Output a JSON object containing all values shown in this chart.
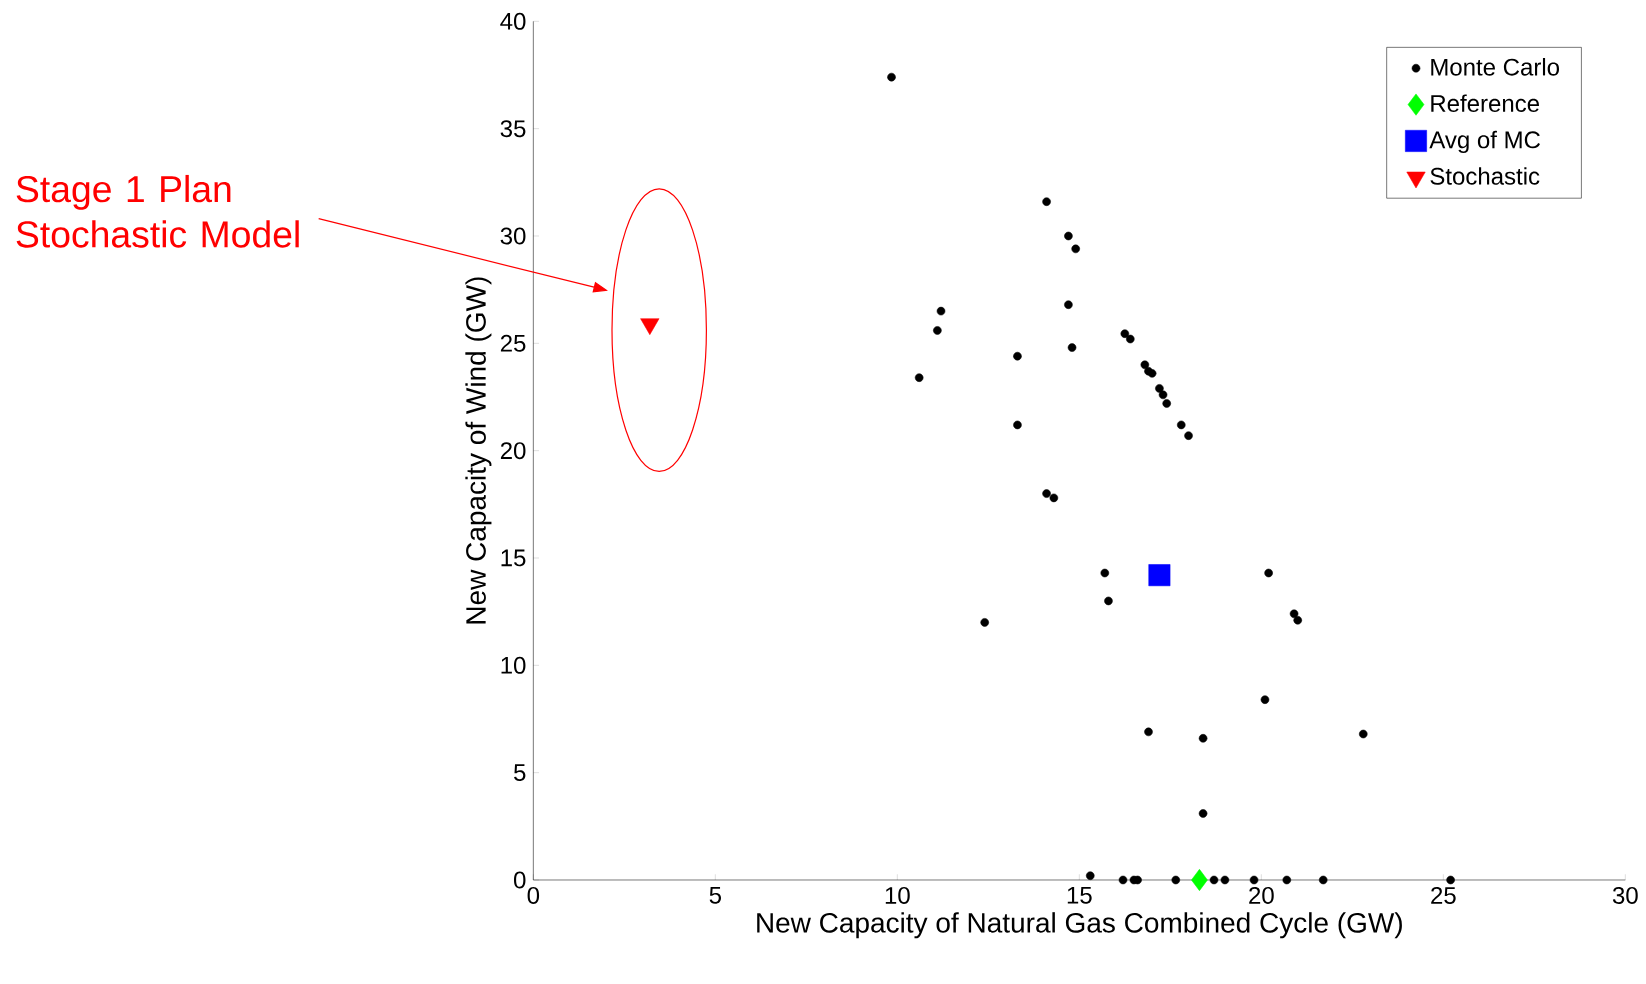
{
  "chart_data": {
    "type": "scatter",
    "xlabel": "New Capacity of Natural Gas Combined Cycle (GW)",
    "ylabel": "New Capacity of Wind (GW)",
    "xlim": [
      0,
      30
    ],
    "xticks": [
      0,
      5,
      10,
      15,
      20,
      25,
      30
    ],
    "ylim": [
      0,
      40
    ],
    "yticks": [
      0,
      5,
      10,
      15,
      20,
      25,
      30,
      35,
      40
    ],
    "grid": false,
    "legend": "top right",
    "annotations": [
      "Stage 1 Plan Stochastic Model"
    ],
    "series": [
      {
        "name": "Monte Carlo",
        "color": "#000000",
        "marker": "circle",
        "x": [
          9.84,
          14.1,
          14.7,
          14.9,
          11.2,
          14.7,
          11.1,
          16.25,
          16.4,
          14.8,
          13.3,
          10.6,
          16.8,
          16.9,
          17.0,
          17.2,
          17.3,
          17.4,
          17.8,
          18.0,
          13.3,
          14.1,
          14.3,
          15.7,
          15.8,
          12.4,
          20.2,
          20.9,
          21.0,
          20.1,
          16.9,
          18.4,
          22.8,
          18.4,
          15.3,
          16.2,
          16.5,
          16.6,
          17.65,
          18.7,
          19.0,
          19.8,
          20.7,
          21.7,
          25.2
        ],
        "values": [
          37.4,
          31.6,
          30.0,
          29.4,
          26.5,
          26.8,
          25.6,
          25.45,
          25.2,
          24.8,
          24.4,
          23.4,
          24.0,
          23.7,
          23.6,
          22.9,
          22.6,
          22.2,
          21.2,
          20.7,
          21.2,
          18.0,
          17.8,
          14.3,
          13.0,
          12.0,
          14.3,
          12.4,
          12.1,
          8.4,
          6.9,
          6.6,
          6.8,
          3.1,
          0.2,
          0,
          0,
          0,
          0,
          0,
          0,
          0,
          0,
          0,
          0
        ]
      },
      {
        "name": "Reference",
        "color": "#00ff00",
        "marker": "diamond",
        "x": [
          18.3
        ],
        "values": [
          0
        ]
      },
      {
        "name": "Avg of MC",
        "color": "#0000ff",
        "marker": "square",
        "x": [
          17.2
        ],
        "values": [
          14.2
        ]
      },
      {
        "name": "Stochastic",
        "color": "#ff0000",
        "marker": "triangle",
        "x": [
          3.2
        ],
        "values": [
          25.9
        ]
      }
    ]
  }
}
